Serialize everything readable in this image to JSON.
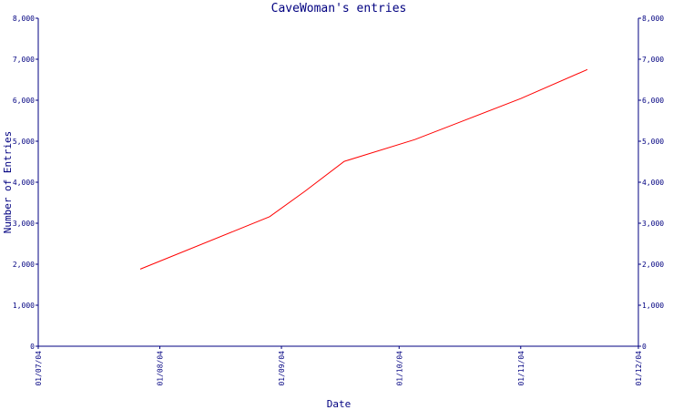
{
  "chart_data": {
    "type": "line",
    "title": "CaveWoman's entries",
    "xlabel": "Date",
    "ylabel": "Number of Entries",
    "x_ticks": [
      "01/07/04",
      "01/08/04",
      "01/09/04",
      "01/10/04",
      "01/11/04",
      "01/12/04"
    ],
    "xlim": [
      "2004-07-01",
      "2004-12-01"
    ],
    "y_ticks": [
      "0",
      "1,000",
      "2,000",
      "3,000",
      "4,000",
      "5,000",
      "6,000",
      "7,000",
      "8,000"
    ],
    "ylim": [
      0,
      8000
    ],
    "grid": false,
    "y_axis_both_sides": true,
    "series": [
      {
        "color": "#ff0000",
        "points": [
          {
            "x": "2004-07-27",
            "y": 1880
          },
          {
            "x": "2004-08-29",
            "y": 3160
          },
          {
            "x": "2004-09-07",
            "y": 3780
          },
          {
            "x": "2004-09-17",
            "y": 4510
          },
          {
            "x": "2004-10-05",
            "y": 5040
          },
          {
            "x": "2004-11-01",
            "y": 6040
          },
          {
            "x": "2004-11-18",
            "y": 6750
          }
        ]
      }
    ]
  }
}
